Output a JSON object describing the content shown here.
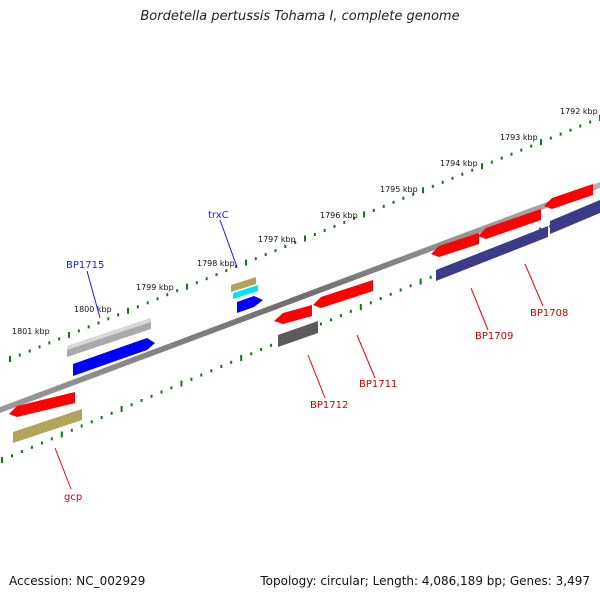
{
  "header": {
    "title": "Bordetella pertussis Tohama I, complete genome"
  },
  "footer": {
    "accession": "Accession: NC_002929",
    "summary": "Topology: circular; Length: 4,086,189 bp; Genes: 3,497"
  },
  "ruler": {
    "ticks": [
      {
        "label": "1792 kbp"
      },
      {
        "label": "1793 kbp"
      },
      {
        "label": "1794 kbp"
      },
      {
        "label": "1795 kbp"
      },
      {
        "label": "1796 kbp"
      },
      {
        "label": "1797 kbp"
      },
      {
        "label": "1798 kbp"
      },
      {
        "label": "1799 kbp"
      },
      {
        "label": "1800 kbp"
      },
      {
        "label": "1801 kbp"
      }
    ]
  },
  "genes": [
    {
      "label": "BP1715",
      "color": "#1a1aff"
    },
    {
      "label": "trxC",
      "color": "#1a1aff"
    },
    {
      "label": "BP1712",
      "color": "#ff0000"
    },
    {
      "label": "BP1711",
      "color": "#ff0000"
    },
    {
      "label": "BP1709",
      "color": "#ff0000"
    },
    {
      "label": "BP1708",
      "color": "#ff0000"
    },
    {
      "label": "gcp",
      "color": "#ff0000"
    }
  ],
  "colors": {
    "forward_cds": "#0000ff",
    "reverse_cds": "#ff0000",
    "cog_gray": "#9a9a9a",
    "cog_dark": "#555555",
    "cog_navy": "#3b3b8a",
    "cog_olive": "#b0a35a",
    "cog_cyan": "#00e5ff",
    "backbone": "#777777",
    "tick_green": "#137a13"
  }
}
